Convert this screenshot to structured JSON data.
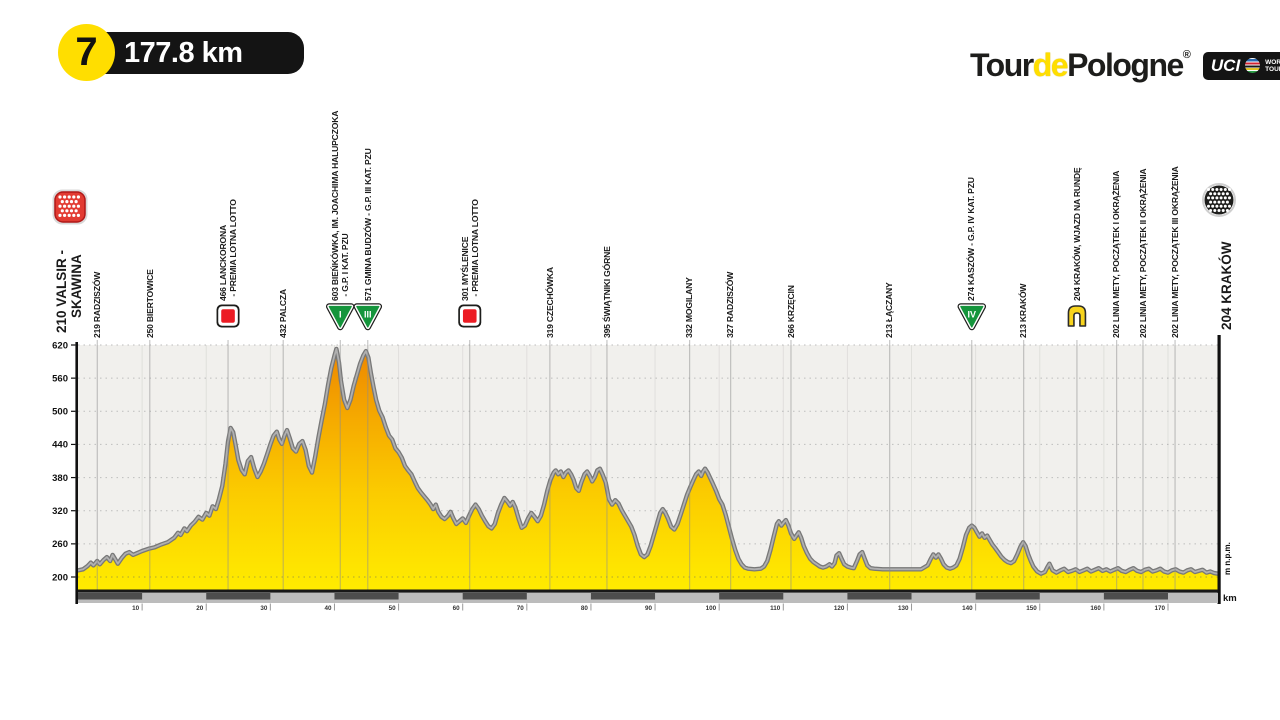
{
  "header": {
    "stage_number": "7",
    "distance_label": "177.8 km",
    "logo": {
      "tour": "Tour",
      "de": "de",
      "pologne": "Pologne",
      "registered": "®",
      "uci": "UCI",
      "world_tour": "WORLD TOUR"
    }
  },
  "colors": {
    "brand_yellow": "#FFDE00",
    "badge_black": "#141414",
    "chart_bg": "#F1F0ED",
    "profile_top": "#ED8500",
    "profile_mid": "#F6AC00",
    "profile_low": "#FBCB00",
    "profile_bottom": "#FFEC00",
    "profile_edge_dark": "#787878",
    "profile_edge_light": "#B0B0B0",
    "band_gray": "#BCBCBC",
    "band_dark": "#4D4D4D",
    "sprint_red": "#EC1C24",
    "kom_green": "#15953C",
    "lap_yellow": "#F8D41D",
    "start_red": "#E23B32",
    "finish_black": "#1D1D1B"
  },
  "chart_data": {
    "type": "area",
    "title": "Tour de Pologne — Stage 7 elevation profile",
    "xlabel": "km",
    "ylabel": "m n.p.m.",
    "xlim": [
      0,
      177.8
    ],
    "ylim": [
      200,
      620
    ],
    "yticks": [
      620,
      560,
      500,
      440,
      380,
      320,
      260,
      200
    ],
    "xticks": [
      10,
      20,
      30,
      40,
      50,
      60,
      70,
      80,
      90,
      100,
      110,
      120,
      130,
      140,
      150,
      160,
      170
    ],
    "grid": true,
    "legend": "none",
    "waypoints": [
      {
        "km": 0,
        "lines": [
          "210 VALSIR -",
          "    SKAWINA"
        ],
        "type": "start",
        "icon": "start"
      },
      {
        "km": 3,
        "lines": [
          "219 RADZISZÓW"
        ]
      },
      {
        "km": 11.2,
        "lines": [
          "250 BIERTOWICE"
        ]
      },
      {
        "km": 23.4,
        "lines": [
          "466 LANCKORONA",
          "  - PREMIA LOTNA LOTTO"
        ],
        "icon": "sprint"
      },
      {
        "km": 32,
        "lines": [
          "432 PALCZA"
        ]
      },
      {
        "km": 40.9,
        "lines": [
          "603 BIEŃKÓWKA, IM. JOACHIMA HALUPCZOKA",
          "  - G.P. I KAT. PZU"
        ],
        "icon": "kom",
        "kom": "I"
      },
      {
        "km": 45.2,
        "lines": [
          "571 GMINA BUDZÓW - G.P. III KAT. PZU"
        ],
        "icon": "kom",
        "kom": "III"
      },
      {
        "km": 61.1,
        "lines": [
          "301 MYŚLENICE",
          "  - PREMIA LOTNA LOTTO"
        ],
        "icon": "sprint"
      },
      {
        "km": 73.6,
        "lines": [
          "319 CZECHÓWKA"
        ]
      },
      {
        "km": 82.5,
        "lines": [
          "395 ŚWIĄTNIKI GÓRNE"
        ]
      },
      {
        "km": 95.4,
        "lines": [
          "332 MOGILANY"
        ]
      },
      {
        "km": 101.8,
        "lines": [
          "327 RADZISZÓW"
        ]
      },
      {
        "km": 111.2,
        "lines": [
          "266 KRZĘCIN"
        ]
      },
      {
        "km": 126.6,
        "lines": [
          "213 ŁĄCZANY"
        ]
      },
      {
        "km": 139.4,
        "lines": [
          "274 KASZÓW - G.P. IV KAT. PZU"
        ],
        "icon": "kom",
        "kom": "IV"
      },
      {
        "km": 147.5,
        "lines": [
          "213 KRAKÓW"
        ]
      },
      {
        "km": 155.8,
        "lines": [
          "204 KRAKÓW, WJAZD NA RUNDĘ"
        ],
        "icon": "lap"
      },
      {
        "km": 162,
        "lines": [
          "202 LINIA METY, POCZĄTEK I OKRĄŻENIA"
        ]
      },
      {
        "km": 166.1,
        "lines": [
          "202 LINIA METY, POCZĄTEK II OKRĄŻENIA"
        ]
      },
      {
        "km": 171.1,
        "lines": [
          "202 LINIA METY, POCZĄTEK III OKRĄŻENIA"
        ]
      },
      {
        "km": 177.8,
        "lines": [
          "204 KRAKÓW"
        ],
        "type": "finish",
        "icon": "finish"
      }
    ],
    "profile": [
      [
        0,
        212
      ],
      [
        0.8,
        214
      ],
      [
        1.5,
        220
      ],
      [
        2,
        226
      ],
      [
        2.4,
        221
      ],
      [
        3,
        229
      ],
      [
        3.4,
        223
      ],
      [
        4,
        231
      ],
      [
        4.5,
        236
      ],
      [
        5,
        229
      ],
      [
        5.4,
        240
      ],
      [
        5.8,
        232
      ],
      [
        6.2,
        224
      ],
      [
        6.8,
        234
      ],
      [
        7.4,
        242
      ],
      [
        8,
        245
      ],
      [
        8.6,
        240
      ],
      [
        9.2,
        243
      ],
      [
        10,
        247
      ],
      [
        11,
        251
      ],
      [
        12,
        254
      ],
      [
        13,
        259
      ],
      [
        14,
        263
      ],
      [
        15,
        271
      ],
      [
        15.6,
        280
      ],
      [
        16,
        276
      ],
      [
        16.6,
        288
      ],
      [
        17,
        283
      ],
      [
        17.6,
        293
      ],
      [
        18.2,
        300
      ],
      [
        18.8,
        309
      ],
      [
        19.4,
        304
      ],
      [
        20,
        316
      ],
      [
        20.5,
        311
      ],
      [
        21,
        328
      ],
      [
        21.5,
        323
      ],
      [
        22,
        342
      ],
      [
        22.5,
        365
      ],
      [
        23,
        405
      ],
      [
        23.4,
        445
      ],
      [
        23.8,
        470
      ],
      [
        24.2,
        462
      ],
      [
        24.6,
        438
      ],
      [
        25,
        412
      ],
      [
        25.5,
        394
      ],
      [
        26,
        386
      ],
      [
        26.5,
        410
      ],
      [
        27,
        417
      ],
      [
        27.5,
        396
      ],
      [
        28,
        381
      ],
      [
        28.5,
        391
      ],
      [
        29,
        405
      ],
      [
        29.5,
        422
      ],
      [
        30,
        440
      ],
      [
        30.5,
        456
      ],
      [
        31,
        463
      ],
      [
        31.4,
        449
      ],
      [
        31.8,
        441
      ],
      [
        32.2,
        456
      ],
      [
        32.6,
        466
      ],
      [
        33,
        452
      ],
      [
        33.5,
        433
      ],
      [
        34,
        427
      ],
      [
        34.5,
        441
      ],
      [
        35,
        446
      ],
      [
        35.5,
        430
      ],
      [
        36,
        401
      ],
      [
        36.5,
        389
      ],
      [
        37,
        418
      ],
      [
        37.5,
        452
      ],
      [
        38,
        483
      ],
      [
        38.5,
        513
      ],
      [
        39,
        548
      ],
      [
        39.5,
        578
      ],
      [
        40,
        601
      ],
      [
        40.3,
        613
      ],
      [
        40.7,
        588
      ],
      [
        41,
        556
      ],
      [
        41.5,
        521
      ],
      [
        42,
        506
      ],
      [
        42.5,
        521
      ],
      [
        43,
        546
      ],
      [
        43.5,
        566
      ],
      [
        44,
        586
      ],
      [
        44.5,
        601
      ],
      [
        44.9,
        609
      ],
      [
        45.3,
        597
      ],
      [
        45.7,
        568
      ],
      [
        46.1,
        543
      ],
      [
        46.5,
        521
      ],
      [
        47,
        501
      ],
      [
        47.5,
        489
      ],
      [
        48,
        471
      ],
      [
        48.5,
        456
      ],
      [
        49,
        449
      ],
      [
        49.5,
        433
      ],
      [
        50,
        426
      ],
      [
        50.5,
        416
      ],
      [
        51,
        401
      ],
      [
        51.5,
        393
      ],
      [
        52,
        386
      ],
      [
        52.5,
        373
      ],
      [
        53,
        361
      ],
      [
        53.5,
        353
      ],
      [
        54,
        346
      ],
      [
        54.5,
        339
      ],
      [
        55,
        331
      ],
      [
        55.4,
        323
      ],
      [
        55.8,
        331
      ],
      [
        56.2,
        318
      ],
      [
        56.7,
        309
      ],
      [
        57.2,
        305
      ],
      [
        57.7,
        311
      ],
      [
        58.1,
        318
      ],
      [
        58.5,
        307
      ],
      [
        59,
        296
      ],
      [
        59.5,
        301
      ],
      [
        60,
        306
      ],
      [
        60.5,
        298
      ],
      [
        61,
        311
      ],
      [
        61.5,
        323
      ],
      [
        62,
        331
      ],
      [
        62.5,
        323
      ],
      [
        63,
        311
      ],
      [
        63.5,
        301
      ],
      [
        64,
        292
      ],
      [
        64.5,
        288
      ],
      [
        65,
        296
      ],
      [
        65.5,
        316
      ],
      [
        66,
        331
      ],
      [
        66.5,
        343
      ],
      [
        67,
        336
      ],
      [
        67.4,
        329
      ],
      [
        67.8,
        336
      ],
      [
        68.2,
        326
      ],
      [
        68.7,
        306
      ],
      [
        69.2,
        289
      ],
      [
        69.7,
        293
      ],
      [
        70.2,
        306
      ],
      [
        70.7,
        316
      ],
      [
        71.2,
        309
      ],
      [
        71.7,
        301
      ],
      [
        72.2,
        311
      ],
      [
        72.7,
        331
      ],
      [
        73.2,
        356
      ],
      [
        73.7,
        376
      ],
      [
        74.2,
        389
      ],
      [
        74.5,
        393
      ],
      [
        74.9,
        386
      ],
      [
        75.3,
        391
      ],
      [
        75.7,
        381
      ],
      [
        76.1,
        389
      ],
      [
        76.5,
        393
      ],
      [
        76.9,
        386
      ],
      [
        77.3,
        376
      ],
      [
        77.7,
        361
      ],
      [
        78.1,
        356
      ],
      [
        78.5,
        371
      ],
      [
        79,
        386
      ],
      [
        79.4,
        391
      ],
      [
        79.8,
        383
      ],
      [
        80.2,
        373
      ],
      [
        80.6,
        381
      ],
      [
        81,
        393
      ],
      [
        81.4,
        396
      ],
      [
        81.8,
        386
      ],
      [
        82.3,
        371
      ],
      [
        82.8,
        341
      ],
      [
        83.3,
        331
      ],
      [
        83.8,
        339
      ],
      [
        84.3,
        333
      ],
      [
        84.8,
        321
      ],
      [
        85.3,
        311
      ],
      [
        85.8,
        301
      ],
      [
        86.3,
        291
      ],
      [
        86.8,
        276
      ],
      [
        87.3,
        256
      ],
      [
        87.8,
        241
      ],
      [
        88.3,
        236
      ],
      [
        88.8,
        241
      ],
      [
        89.3,
        256
      ],
      [
        89.8,
        276
      ],
      [
        90.3,
        296
      ],
      [
        90.8,
        316
      ],
      [
        91.2,
        323
      ],
      [
        91.6,
        316
      ],
      [
        92,
        306
      ],
      [
        92.5,
        291
      ],
      [
        93,
        286
      ],
      [
        93.5,
        296
      ],
      [
        94,
        313
      ],
      [
        94.5,
        331
      ],
      [
        95,
        349
      ],
      [
        95.5,
        363
      ],
      [
        96,
        376
      ],
      [
        96.4,
        386
      ],
      [
        96.8,
        391
      ],
      [
        97.2,
        383
      ],
      [
        97.5,
        391
      ],
      [
        97.8,
        396
      ],
      [
        98.2,
        389
      ],
      [
        98.6,
        379
      ],
      [
        99,
        369
      ],
      [
        99.5,
        356
      ],
      [
        100,
        341
      ],
      [
        100.5,
        331
      ],
      [
        101,
        313
      ],
      [
        101.5,
        291
      ],
      [
        102,
        269
      ],
      [
        102.5,
        249
      ],
      [
        103,
        233
      ],
      [
        103.5,
        223
      ],
      [
        104,
        217
      ],
      [
        104.5,
        215
      ],
      [
        105.5,
        214
      ],
      [
        106.5,
        215
      ],
      [
        107,
        219
      ],
      [
        107.5,
        229
      ],
      [
        108,
        249
      ],
      [
        108.5,
        273
      ],
      [
        109,
        296
      ],
      [
        109.3,
        301
      ],
      [
        109.7,
        293
      ],
      [
        110.1,
        299
      ],
      [
        110.4,
        303
      ],
      [
        110.8,
        293
      ],
      [
        111.2,
        279
      ],
      [
        111.7,
        269
      ],
      [
        112.1,
        276
      ],
      [
        112.4,
        281
      ],
      [
        112.8,
        271
      ],
      [
        113.2,
        256
      ],
      [
        113.7,
        243
      ],
      [
        114.2,
        233
      ],
      [
        114.7,
        227
      ],
      [
        115.2,
        223
      ],
      [
        115.7,
        219
      ],
      [
        116.2,
        217
      ],
      [
        116.7,
        219
      ],
      [
        117.2,
        223
      ],
      [
        117.6,
        219
      ],
      [
        118,
        225
      ],
      [
        118.3,
        239
      ],
      [
        118.7,
        243
      ],
      [
        119.1,
        233
      ],
      [
        119.5,
        223
      ],
      [
        120,
        219
      ],
      [
        120.5,
        217
      ],
      [
        121,
        216
      ],
      [
        121.5,
        229
      ],
      [
        121.9,
        241
      ],
      [
        122.3,
        245
      ],
      [
        122.7,
        233
      ],
      [
        123.1,
        221
      ],
      [
        123.6,
        216
      ],
      [
        124.2,
        215
      ],
      [
        125.5,
        214
      ],
      [
        127,
        214
      ],
      [
        128.5,
        214
      ],
      [
        130,
        214
      ],
      [
        131.5,
        214
      ],
      [
        132.5,
        221
      ],
      [
        133,
        233
      ],
      [
        133.4,
        241
      ],
      [
        133.8,
        235
      ],
      [
        134.2,
        241
      ],
      [
        134.6,
        233
      ],
      [
        135,
        223
      ],
      [
        135.5,
        217
      ],
      [
        136,
        215
      ],
      [
        136.5,
        217
      ],
      [
        137,
        221
      ],
      [
        137.5,
        233
      ],
      [
        138,
        253
      ],
      [
        138.5,
        276
      ],
      [
        139,
        289
      ],
      [
        139.4,
        293
      ],
      [
        139.8,
        289
      ],
      [
        140.2,
        281
      ],
      [
        140.6,
        273
      ],
      [
        141,
        279
      ],
      [
        141.4,
        271
      ],
      [
        141.8,
        275
      ],
      [
        142.2,
        267
      ],
      [
        142.6,
        259
      ],
      [
        143,
        253
      ],
      [
        143.5,
        245
      ],
      [
        144,
        237
      ],
      [
        144.5,
        231
      ],
      [
        145,
        227
      ],
      [
        145.5,
        225
      ],
      [
        146,
        229
      ],
      [
        146.5,
        241
      ],
      [
        147,
        255
      ],
      [
        147.4,
        263
      ],
      [
        147.8,
        256
      ],
      [
        148.2,
        241
      ],
      [
        148.6,
        229
      ],
      [
        149,
        219
      ],
      [
        149.6,
        210
      ],
      [
        150.2,
        206
      ],
      [
        150.8,
        209
      ],
      [
        151.2,
        218
      ],
      [
        151.5,
        224
      ],
      [
        152,
        212
      ],
      [
        152.6,
        208
      ],
      [
        153.2,
        212
      ],
      [
        153.8,
        215
      ],
      [
        154.4,
        209
      ],
      [
        155,
        211
      ],
      [
        155.6,
        214
      ],
      [
        156.2,
        209
      ],
      [
        156.8,
        212
      ],
      [
        157.4,
        215
      ],
      [
        158,
        210
      ],
      [
        158.6,
        213
      ],
      [
        159.2,
        216
      ],
      [
        159.8,
        211
      ],
      [
        160.4,
        214
      ],
      [
        161,
        210
      ],
      [
        161.6,
        213
      ],
      [
        162.2,
        216
      ],
      [
        162.8,
        211
      ],
      [
        163.4,
        209
      ],
      [
        164,
        213
      ],
      [
        164.6,
        216
      ],
      [
        165.2,
        211
      ],
      [
        165.8,
        209
      ],
      [
        166.4,
        213
      ],
      [
        167,
        215
      ],
      [
        167.6,
        210
      ],
      [
        168.2,
        212
      ],
      [
        168.8,
        215
      ],
      [
        169.4,
        210
      ],
      [
        170,
        208
      ],
      [
        170.6,
        212
      ],
      [
        171.2,
        214
      ],
      [
        171.8,
        210
      ],
      [
        172.4,
        208
      ],
      [
        173,
        212
      ],
      [
        173.6,
        214
      ],
      [
        174.2,
        209
      ],
      [
        174.8,
        211
      ],
      [
        175.4,
        213
      ],
      [
        176,
        208
      ],
      [
        176.6,
        210
      ],
      [
        177.2,
        207
      ],
      [
        177.8,
        206
      ]
    ]
  }
}
